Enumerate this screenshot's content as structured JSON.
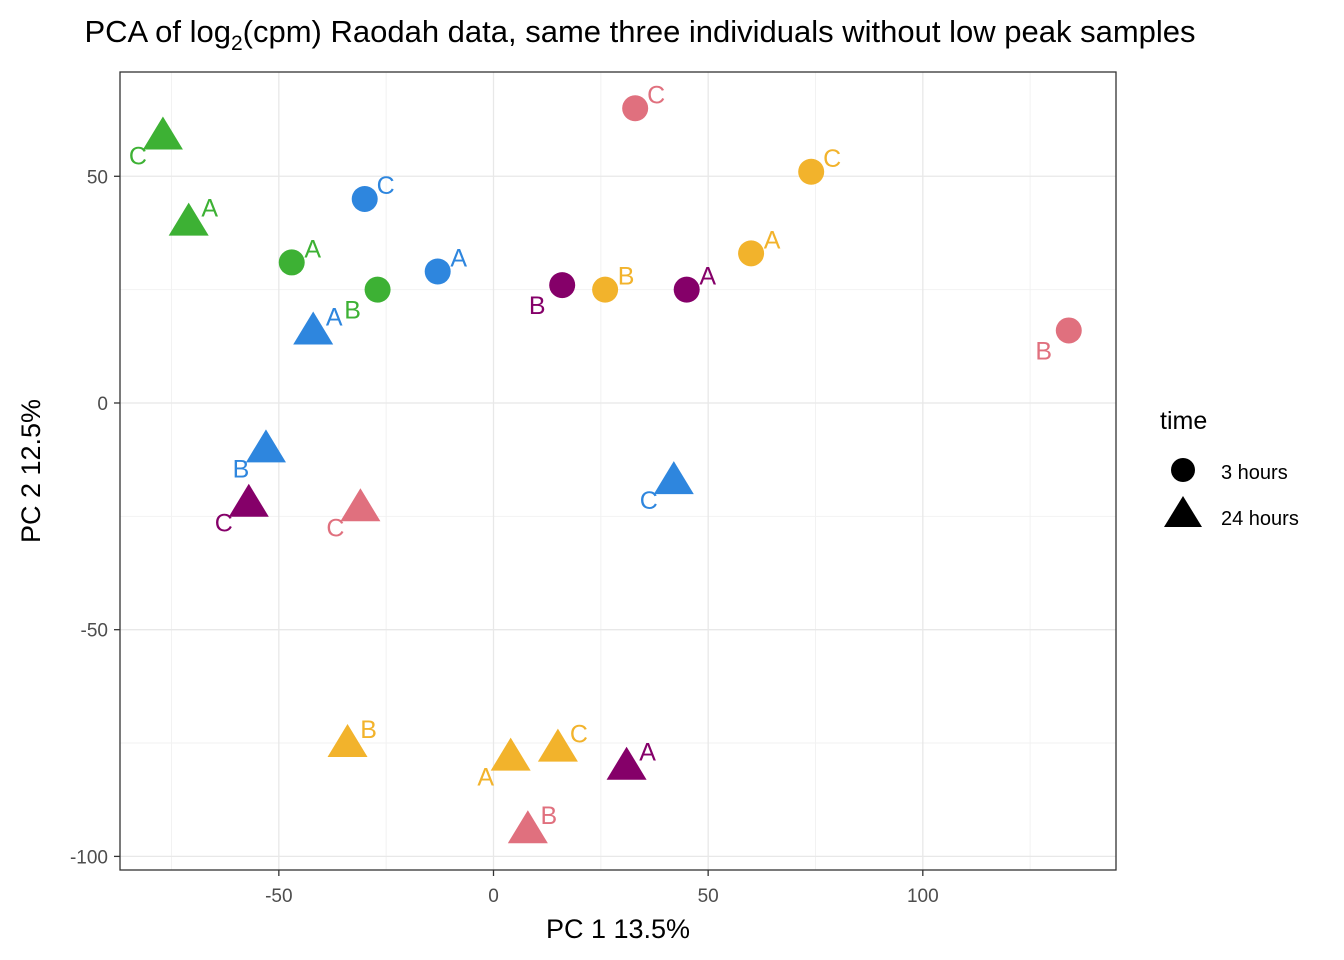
{
  "chart_data": {
    "type": "scatter",
    "title_prefix": "PCA of log",
    "title_sub": "2",
    "title_suffix": "(cpm) Raodah data, same three individuals without low peak samples",
    "xlabel": "PC 1 13.5%",
    "ylabel": "PC 2 12.5%",
    "xlim": [
      -87,
      145
    ],
    "ylim": [
      -103,
      73
    ],
    "xticks": [
      -50,
      0,
      50,
      100
    ],
    "yticks": [
      -100,
      -50,
      0,
      50
    ],
    "grid": true,
    "legend": {
      "title": "time",
      "placement": "right",
      "entries": [
        {
          "label": "3 hours",
          "shape": "circle"
        },
        {
          "label": "24 hours",
          "shape": "triangle"
        }
      ]
    },
    "colors": {
      "green": "#3DB134",
      "blue": "#2E86DE",
      "purple": "#850069",
      "orange": "#F2B32C",
      "pink": "#E0707E"
    },
    "points": [
      {
        "x": -77,
        "y": 59,
        "color": "green",
        "shape": "triangle",
        "label": "C",
        "lpos": "bl"
      },
      {
        "x": -71,
        "y": 40,
        "color": "green",
        "shape": "triangle",
        "label": "A",
        "lpos": "tr"
      },
      {
        "x": -47,
        "y": 31,
        "color": "green",
        "shape": "circle",
        "label": "A",
        "lpos": "tr"
      },
      {
        "x": -27,
        "y": 25,
        "color": "green",
        "shape": "circle",
        "label": "B",
        "lpos": "bl"
      },
      {
        "x": -30,
        "y": 45,
        "color": "blue",
        "shape": "circle",
        "label": "C",
        "lpos": "tr"
      },
      {
        "x": -13,
        "y": 29,
        "color": "blue",
        "shape": "circle",
        "label": "A",
        "lpos": "tr"
      },
      {
        "x": -42,
        "y": 16,
        "color": "blue",
        "shape": "triangle",
        "label": "A",
        "lpos": "tr"
      },
      {
        "x": -53,
        "y": -10,
        "color": "blue",
        "shape": "triangle",
        "label": "B",
        "lpos": "bl"
      },
      {
        "x": 42,
        "y": -17,
        "color": "blue",
        "shape": "triangle",
        "label": "C",
        "lpos": "bl"
      },
      {
        "x": -57,
        "y": -22,
        "color": "purple",
        "shape": "triangle",
        "label": "C",
        "lpos": "bl"
      },
      {
        "x": 16,
        "y": 26,
        "color": "purple",
        "shape": "circle",
        "label": "B",
        "lpos": "bl"
      },
      {
        "x": 45,
        "y": 25,
        "color": "purple",
        "shape": "circle",
        "label": "A",
        "lpos": "tr"
      },
      {
        "x": 31,
        "y": -80,
        "color": "purple",
        "shape": "triangle",
        "label": "A",
        "lpos": "tr"
      },
      {
        "x": -31,
        "y": -23,
        "color": "pink",
        "shape": "triangle",
        "label": "C",
        "lpos": "bl"
      },
      {
        "x": 33,
        "y": 65,
        "color": "pink",
        "shape": "circle",
        "label": "C",
        "lpos": "tr"
      },
      {
        "x": 134,
        "y": 16,
        "color": "pink",
        "shape": "circle",
        "label": "B",
        "lpos": "bl"
      },
      {
        "x": 8,
        "y": -94,
        "color": "pink",
        "shape": "triangle",
        "label": "B",
        "lpos": "tr"
      },
      {
        "x": 26,
        "y": 25,
        "color": "orange",
        "shape": "circle",
        "label": "B",
        "lpos": "tr"
      },
      {
        "x": 60,
        "y": 33,
        "color": "orange",
        "shape": "circle",
        "label": "A",
        "lpos": "tr"
      },
      {
        "x": 74,
        "y": 51,
        "color": "orange",
        "shape": "circle",
        "label": "C",
        "lpos": "tr"
      },
      {
        "x": -34,
        "y": -75,
        "color": "orange",
        "shape": "triangle",
        "label": "B",
        "lpos": "tr"
      },
      {
        "x": 4,
        "y": -78,
        "color": "orange",
        "shape": "triangle",
        "label": "A",
        "lpos": "bl"
      },
      {
        "x": 15,
        "y": -76,
        "color": "orange",
        "shape": "triangle",
        "label": "C",
        "lpos": "tr"
      }
    ]
  }
}
